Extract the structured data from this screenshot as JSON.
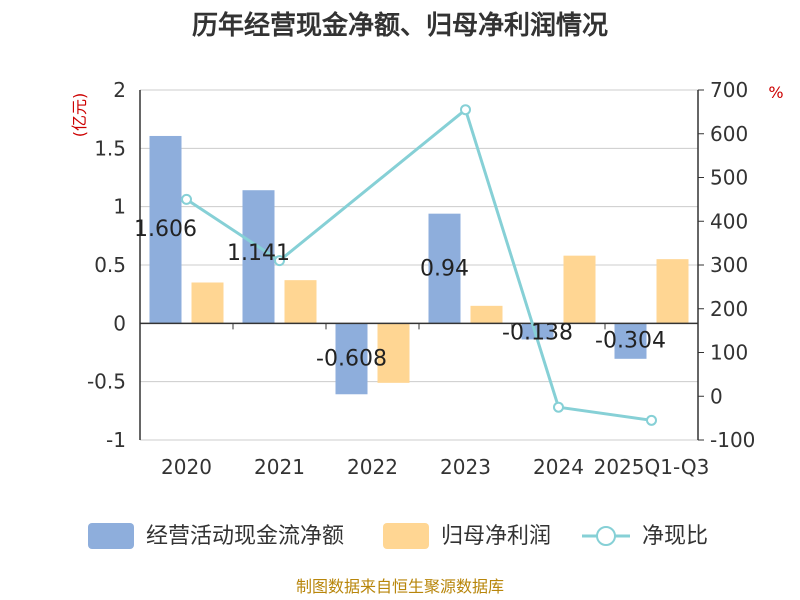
{
  "colors": {
    "cash_flow": "#8EAEDC",
    "net_profit": "#FFD693",
    "ratio": "#86D0D6",
    "unit": "#CC0000",
    "source": "#B8860B",
    "axis": "#333333",
    "grid": "#CCCCCC"
  },
  "chart_data": {
    "type": "bar",
    "title": "历年经营现金净额、归母净利润情况",
    "categories": [
      "2020",
      "2021",
      "2022",
      "2023",
      "2024",
      "2025Q1-Q3"
    ],
    "series": [
      {
        "name": "经营活动现金流净额",
        "type": "bar",
        "axis": "left",
        "values": [
          1.606,
          1.141,
          -0.608,
          0.94,
          -0.138,
          -0.304
        ],
        "labels": [
          "1.606",
          "1.141",
          "-0.608",
          "0.94",
          "-0.138",
          "-0.304"
        ]
      },
      {
        "name": "归母净利润",
        "type": "bar",
        "axis": "left",
        "values": [
          0.35,
          0.37,
          -0.51,
          0.15,
          0.58,
          0.55
        ]
      },
      {
        "name": "净现比",
        "type": "line",
        "axis": "right",
        "values": [
          450,
          310,
          null,
          655,
          -25,
          -55
        ]
      }
    ],
    "y_left": {
      "unit": "(亿元)",
      "min": -1,
      "max": 2,
      "ticks": [
        "2",
        "1.5",
        "1",
        "0.5",
        "0",
        "-0.5",
        "-1"
      ],
      "tick_values": [
        2,
        1.5,
        1,
        0.5,
        0,
        -0.5,
        -1
      ]
    },
    "y_right": {
      "unit": "%",
      "min": -100,
      "max": 700,
      "ticks": [
        "700",
        "600",
        "500",
        "400",
        "300",
        "200",
        "100",
        "0",
        "-100"
      ],
      "tick_values": [
        700,
        600,
        500,
        400,
        300,
        200,
        100,
        0,
        -100
      ]
    },
    "grid": true,
    "legend_position": "bottom"
  },
  "source_note": "制图数据来自恒生聚源数据库"
}
